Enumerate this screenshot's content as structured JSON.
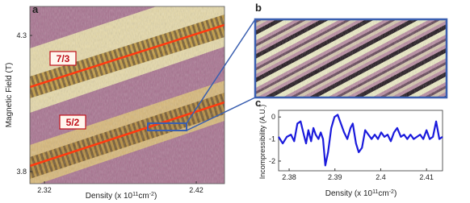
{
  "chart_data": [
    {
      "type": "heatmap",
      "panel_label": "a",
      "xlabel": [
        "Density (x 10",
        "11",
        "cm",
        "-2",
        ")"
      ],
      "ylabel": "Magnetic Field (T)",
      "xlim": [
        2.3104,
        2.4386
      ],
      "xticks": [
        2.32,
        2.42
      ],
      "ylim": [
        3.7556,
        4.4065
      ],
      "yticks": [
        3.8,
        4.3
      ],
      "annotations": [
        "7/3",
        "5/2"
      ]
    },
    {
      "type": "image",
      "panel_label": "b"
    },
    {
      "type": "line",
      "panel_label": "c",
      "xlabel": [
        "Density (x 10",
        "11",
        "cm",
        "-2",
        ")"
      ],
      "ylabel": "Incompressibility (A.U.)",
      "xlim": [
        2.3777,
        2.4135
      ],
      "xticks": [
        2.38,
        2.39,
        2.4,
        2.41
      ],
      "ylim": [
        -2.44,
        0.3
      ],
      "yticks": [
        0,
        -1,
        -2
      ],
      "color": "#1a1adc",
      "x": [
        2.3777,
        2.3786,
        2.3795,
        2.3804,
        2.3811,
        2.3818,
        2.3825,
        2.3832,
        2.3837,
        2.3842,
        2.3848,
        2.3853,
        2.3858,
        2.3864,
        2.3869,
        2.3874,
        2.3879,
        2.3885,
        2.3892,
        2.3899,
        2.3906,
        2.3913,
        2.392,
        2.3927,
        2.3934,
        2.3939,
        2.3946,
        2.3952,
        2.3959,
        2.3966,
        2.3973,
        2.398,
        2.3987,
        2.3994,
        2.4001,
        2.4008,
        2.4015,
        2.4022,
        2.4029,
        2.4036,
        2.4044,
        2.4051,
        2.4058,
        2.4065,
        2.4072,
        2.4079,
        2.4086,
        2.4093,
        2.41,
        2.4107,
        2.4114,
        2.4121,
        2.4128,
        2.4135
      ],
      "values": [
        -0.9,
        -1.2,
        -0.9,
        -0.8,
        -1.1,
        -0.3,
        -0.2,
        -0.8,
        -1.2,
        -0.6,
        -1.1,
        -0.5,
        -0.8,
        -1.0,
        -0.7,
        -1.0,
        -2.2,
        -1.6,
        -0.5,
        0.0,
        0.1,
        -0.3,
        -0.7,
        -1.0,
        -0.5,
        -0.3,
        -1.2,
        -1.6,
        -1.4,
        -0.6,
        -0.8,
        -1.0,
        -0.8,
        -1.0,
        -0.7,
        -0.9,
        -0.8,
        -1.1,
        -0.7,
        -0.5,
        -0.9,
        -0.8,
        -1.0,
        -0.8,
        -1.0,
        -0.9,
        -0.8,
        -1.0,
        -0.6,
        -1.0,
        -0.9,
        -0.2,
        -1.0,
        -0.9
      ]
    }
  ]
}
